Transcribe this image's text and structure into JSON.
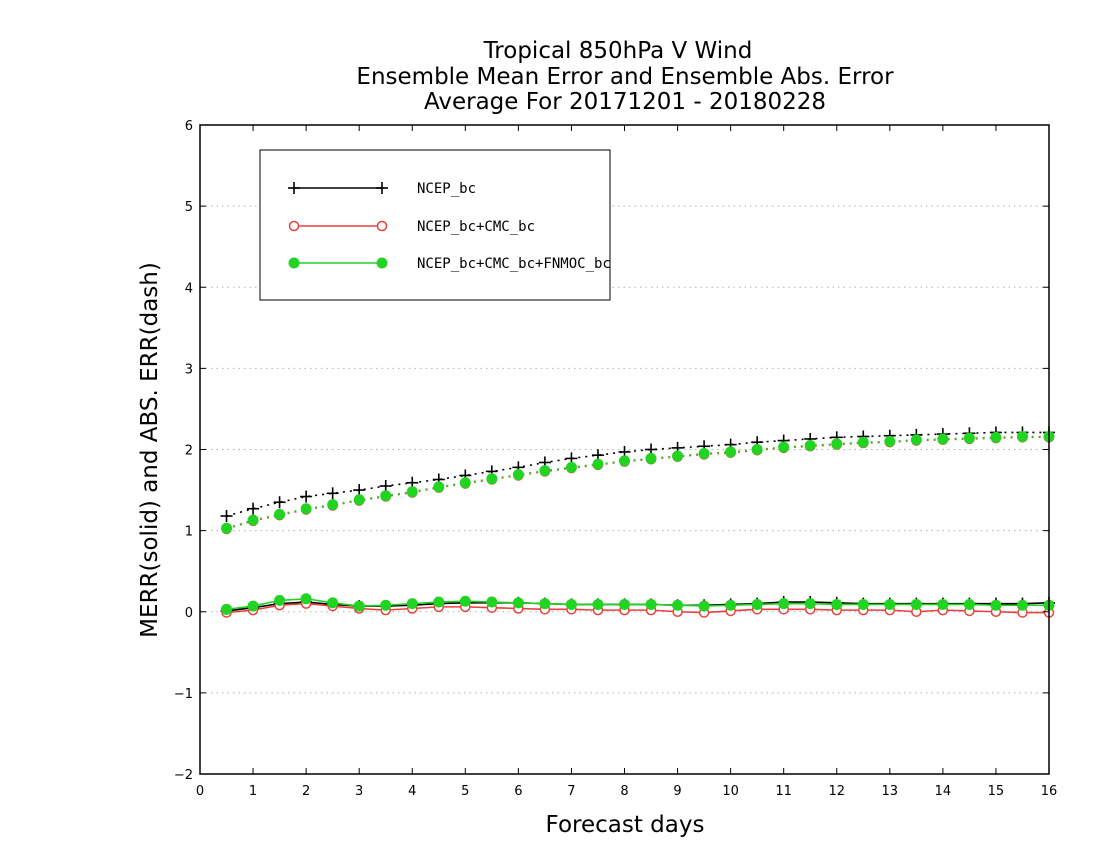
{
  "chart_data": {
    "type": "line",
    "title": [
      "Tropical 850hPa V Wind",
      "Ensemble Mean Error and Ensemble Abs. Error",
      "Average For 20171201 - 20180228"
    ],
    "xlabel": "Forecast days",
    "ylabel": "MERR(solid) and ABS. ERR(dash)",
    "xlim": [
      0,
      16
    ],
    "ylim": [
      -2,
      6
    ],
    "xticks": [
      0,
      1,
      2,
      3,
      4,
      5,
      6,
      7,
      8,
      9,
      10,
      11,
      12,
      13,
      14,
      15,
      16
    ],
    "yticks": [
      -2,
      -1,
      0,
      1,
      2,
      3,
      4,
      5,
      6
    ],
    "grid": "horizontal dotted",
    "legend_position": "top-left",
    "x": [
      0.5,
      1,
      1.5,
      2,
      2.5,
      3,
      3.5,
      4,
      4.5,
      5,
      5.5,
      6,
      6.5,
      7,
      7.5,
      8,
      8.5,
      9,
      9.5,
      10,
      10.5,
      11,
      11.5,
      12,
      12.5,
      13,
      13.5,
      14,
      14.5,
      15,
      15.5,
      16
    ],
    "series": [
      {
        "name": "NCEP_bc",
        "color": "#000000",
        "marker": "plus",
        "merr": [
          0.01,
          0.05,
          0.1,
          0.12,
          0.09,
          0.07,
          0.07,
          0.08,
          0.1,
          0.11,
          0.11,
          0.11,
          0.1,
          0.09,
          0.09,
          0.09,
          0.09,
          0.08,
          0.08,
          0.09,
          0.1,
          0.12,
          0.12,
          0.11,
          0.1,
          0.1,
          0.1,
          0.1,
          0.1,
          0.1,
          0.1,
          0.11
        ],
        "abs_err": [
          1.18,
          1.27,
          1.35,
          1.42,
          1.46,
          1.5,
          1.55,
          1.59,
          1.63,
          1.68,
          1.73,
          1.78,
          1.84,
          1.89,
          1.93,
          1.97,
          2.0,
          2.02,
          2.04,
          2.06,
          2.09,
          2.11,
          2.13,
          2.15,
          2.16,
          2.17,
          2.18,
          2.19,
          2.2,
          2.21,
          2.21,
          2.21
        ]
      },
      {
        "name": "NCEP_bc+CMC_bc",
        "color": "#e8413c",
        "marker": "open-circle",
        "merr": [
          -0.01,
          0.02,
          0.08,
          0.1,
          0.07,
          0.04,
          0.02,
          0.04,
          0.06,
          0.06,
          0.05,
          0.04,
          0.03,
          0.03,
          0.02,
          0.02,
          0.02,
          0.0,
          -0.01,
          0.01,
          0.03,
          0.03,
          0.03,
          0.02,
          0.02,
          0.02,
          0.0,
          0.02,
          0.01,
          0.0,
          -0.01,
          -0.01
        ],
        "abs_err": [
          1.02,
          1.12,
          1.19,
          1.26,
          1.31,
          1.37,
          1.42,
          1.47,
          1.53,
          1.58,
          1.63,
          1.68,
          1.73,
          1.77,
          1.81,
          1.85,
          1.88,
          1.91,
          1.94,
          1.96,
          1.99,
          2.02,
          2.04,
          2.06,
          2.08,
          2.09,
          2.11,
          2.12,
          2.13,
          2.14,
          2.15,
          2.15
        ]
      },
      {
        "name": "NCEP_bc+CMC_bc+FNMOC_bc",
        "color": "#22d422",
        "marker": "filled-circle",
        "merr": [
          0.03,
          0.07,
          0.14,
          0.16,
          0.11,
          0.07,
          0.08,
          0.1,
          0.12,
          0.13,
          0.12,
          0.11,
          0.1,
          0.09,
          0.09,
          0.09,
          0.09,
          0.08,
          0.07,
          0.08,
          0.09,
          0.1,
          0.1,
          0.09,
          0.09,
          0.09,
          0.09,
          0.09,
          0.09,
          0.08,
          0.08,
          0.08
        ],
        "abs_err": [
          1.03,
          1.13,
          1.2,
          1.27,
          1.32,
          1.38,
          1.43,
          1.48,
          1.54,
          1.59,
          1.64,
          1.69,
          1.74,
          1.78,
          1.82,
          1.86,
          1.89,
          1.92,
          1.95,
          1.97,
          2.0,
          2.03,
          2.05,
          2.07,
          2.09,
          2.1,
          2.12,
          2.13,
          2.14,
          2.15,
          2.16,
          2.16
        ]
      }
    ]
  }
}
